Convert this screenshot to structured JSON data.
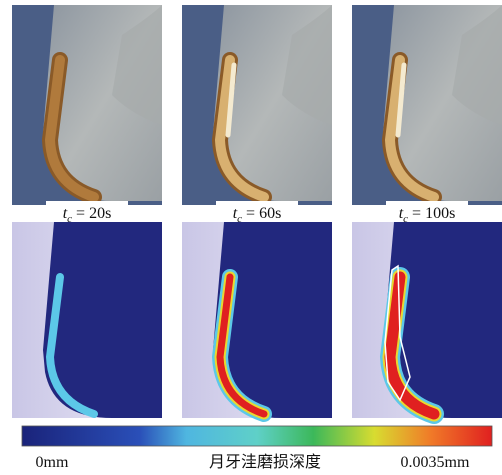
{
  "panels": [
    {
      "time_label": {
        "symbol": "t",
        "subscript": "c",
        "text": "= 20s"
      }
    },
    {
      "time_label": {
        "symbol": "t",
        "subscript": "c",
        "text": "= 60s"
      }
    },
    {
      "time_label": {
        "symbol": "t",
        "subscript": "c",
        "text": "= 100s"
      }
    }
  ],
  "colorbar": {
    "min_label": "0mm",
    "title": "月牙洼磨损深度",
    "max_label": "0.0035mm"
  }
}
